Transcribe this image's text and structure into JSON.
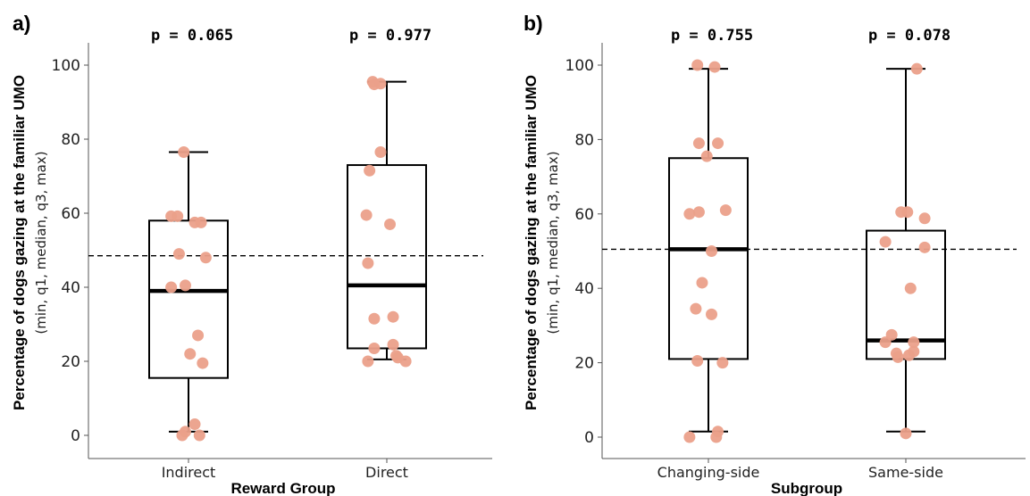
{
  "colors": {
    "point": "#eba08a",
    "box": "#000000",
    "axis": "#555555"
  },
  "chart_data": [
    {
      "type": "box",
      "panel_label": "a)",
      "xlabel": "Reward Group",
      "ylabel": "Percentage of dogs gazing at the familiar UMO",
      "ylabel_sub": "(min, q1, median, q3, max)",
      "ylim": [
        -6,
        105
      ],
      "yticks": [
        0,
        20,
        40,
        60,
        80,
        100
      ],
      "reference_line": 48.5,
      "grid": false,
      "groups": [
        {
          "category": "Indirect",
          "p_label": "p = 0.065",
          "stats": {
            "min": 1,
            "q1": 15.5,
            "median": 39,
            "q3": 58,
            "max": 76.5
          },
          "points": [
            [
              -0.03,
              76.5
            ],
            [
              -0.11,
              59.2
            ],
            [
              -0.07,
              59.2
            ],
            [
              0.04,
              57.5
            ],
            [
              0.08,
              57.5
            ],
            [
              -0.06,
              49
            ],
            [
              0.11,
              48
            ],
            [
              -0.11,
              40
            ],
            [
              -0.02,
              40.5
            ],
            [
              0.06,
              27
            ],
            [
              0.01,
              22
            ],
            [
              0.09,
              19.5
            ],
            [
              -0.02,
              1
            ],
            [
              -0.04,
              0
            ],
            [
              0.04,
              3
            ],
            [
              0.07,
              0
            ]
          ]
        },
        {
          "category": "Direct",
          "p_label": "p = 0.977",
          "stats": {
            "min": 20.5,
            "q1": 23.5,
            "median": 40.5,
            "q3": 73,
            "max": 95.5
          },
          "points": [
            [
              -0.09,
              95.5
            ],
            [
              -0.08,
              94.8
            ],
            [
              -0.04,
              95
            ],
            [
              -0.04,
              76.5
            ],
            [
              -0.11,
              71.5
            ],
            [
              0.02,
              57
            ],
            [
              -0.13,
              59.5
            ],
            [
              -0.12,
              46.5
            ],
            [
              -0.08,
              31.5
            ],
            [
              0.04,
              32
            ],
            [
              -0.08,
              23.5
            ],
            [
              0.04,
              24.5
            ],
            [
              0.06,
              21.5
            ],
            [
              0.07,
              21
            ],
            [
              -0.12,
              20
            ],
            [
              0.12,
              20
            ]
          ]
        }
      ]
    },
    {
      "type": "box",
      "panel_label": "b)",
      "xlabel": "Subgroup",
      "ylabel": "Percentage of dogs gazing at the familiar UMO",
      "ylabel_sub": "(min, q1, median, q3, max)",
      "ylim": [
        -6,
        105
      ],
      "yticks": [
        0,
        20,
        40,
        60,
        80,
        100
      ],
      "reference_line": 50.5,
      "grid": false,
      "groups": [
        {
          "category": "Changing-side",
          "p_label": "p = 0.755",
          "stats": {
            "min": 1.5,
            "q1": 21,
            "median": 50.5,
            "q3": 75,
            "max": 99
          },
          "points": [
            [
              -0.07,
              100
            ],
            [
              0.04,
              99.5
            ],
            [
              -0.06,
              79
            ],
            [
              0.06,
              79
            ],
            [
              -0.01,
              75.5
            ],
            [
              -0.12,
              60
            ],
            [
              -0.06,
              60.5
            ],
            [
              0.11,
              61
            ],
            [
              0.02,
              50
            ],
            [
              -0.04,
              41.5
            ],
            [
              -0.08,
              34.5
            ],
            [
              0.02,
              33
            ],
            [
              -0.07,
              20.5
            ],
            [
              0.09,
              20
            ],
            [
              0.06,
              1.5
            ],
            [
              -0.12,
              0
            ],
            [
              0.05,
              0
            ]
          ]
        },
        {
          "category": "Same-side",
          "p_label": "p = 0.078",
          "stats": {
            "min": 1.5,
            "q1": 21,
            "median": 26,
            "q3": 55.5,
            "max": 99
          },
          "points": [
            [
              0.07,
              99
            ],
            [
              -0.03,
              60.5
            ],
            [
              0.01,
              60.5
            ],
            [
              0.12,
              58.8
            ],
            [
              -0.13,
              52.5
            ],
            [
              0.12,
              51
            ],
            [
              0.03,
              40
            ],
            [
              -0.09,
              27.5
            ],
            [
              -0.13,
              25.5
            ],
            [
              0.05,
              25.5
            ],
            [
              -0.06,
              22.5
            ],
            [
              -0.05,
              21.5
            ],
            [
              0.02,
              22
            ],
            [
              0.05,
              23
            ],
            [
              0.0,
              1
            ]
          ]
        }
      ]
    }
  ]
}
